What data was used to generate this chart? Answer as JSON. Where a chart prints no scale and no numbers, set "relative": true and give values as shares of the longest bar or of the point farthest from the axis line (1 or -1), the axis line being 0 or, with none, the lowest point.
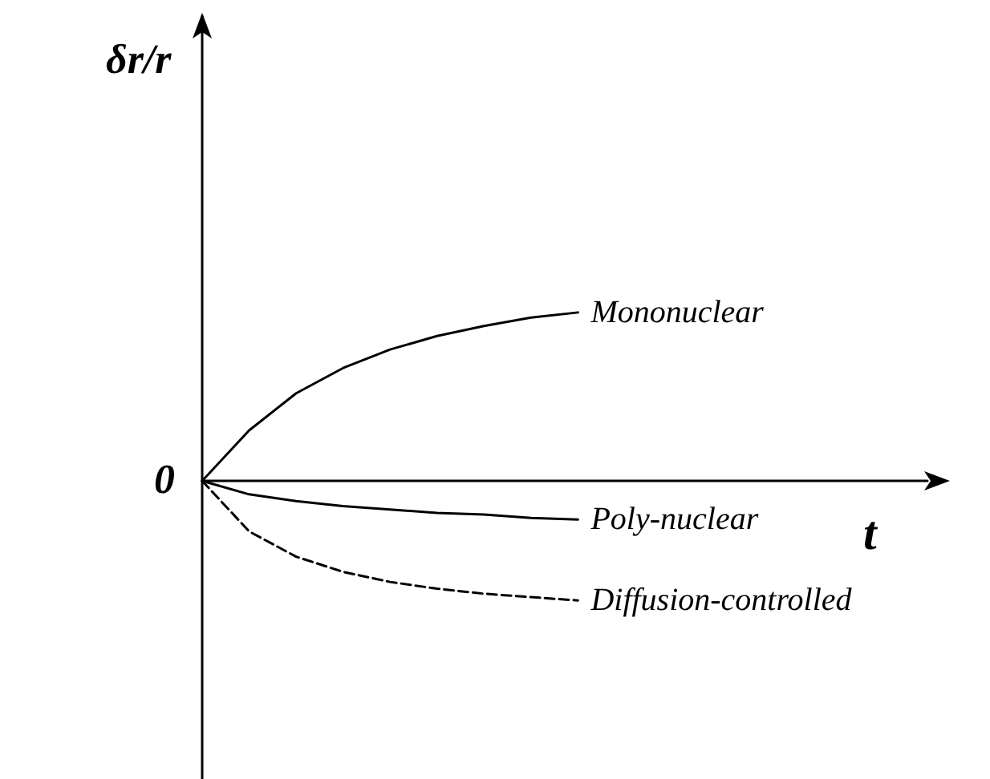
{
  "chart_data": {
    "type": "line",
    "relative": true,
    "annotations": [
      "0",
      "δr/r",
      "t"
    ],
    "categories": [
      null,
      null,
      null,
      null,
      null,
      null,
      null,
      null,
      null
    ],
    "series": [
      {
        "name": "Mononuclear",
        "color": "#000000",
        "line_style": "solid",
        "values": [
          0,
          0.3,
          0.52,
          0.67,
          0.78,
          0.86,
          0.92,
          0.97,
          1.0
        ]
      },
      {
        "name": "Poly-nuclear",
        "color": "#000000",
        "line_style": "solid",
        "values": [
          0,
          -0.08,
          -0.12,
          -0.15,
          -0.17,
          -0.19,
          -0.2,
          -0.22,
          -0.23
        ]
      },
      {
        "name": "Diffusion-controlled",
        "color": "#000000",
        "line_style": "dashed",
        "values": [
          0,
          -0.3,
          -0.45,
          -0.54,
          -0.6,
          -0.64,
          -0.67,
          -0.69,
          -0.71
        ]
      }
    ]
  }
}
